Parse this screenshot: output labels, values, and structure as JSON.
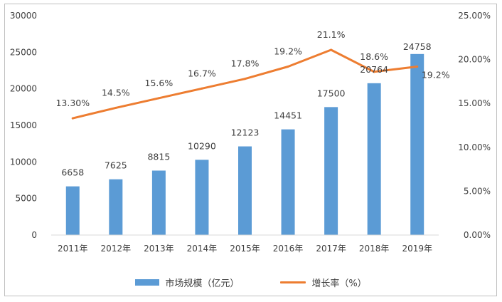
{
  "chart_data": {
    "type": "bar",
    "categories": [
      "2011年",
      "2012年",
      "2013年",
      "2014年",
      "2015年",
      "2016年",
      "2017年",
      "2018年",
      "2019年"
    ],
    "series": [
      {
        "name": "市场规模（亿元）",
        "kind": "bar",
        "axis": "left",
        "color": "#5b9bd5",
        "values": [
          6658,
          7625,
          8815,
          10290,
          12123,
          14451,
          17500,
          20764,
          24758
        ],
        "labels": [
          "6658",
          "7625",
          "8815",
          "10290",
          "12123",
          "14451",
          "17500",
          "20764",
          "24758"
        ]
      },
      {
        "name": "增长率（%）",
        "kind": "line",
        "axis": "right",
        "color": "#ed7d31",
        "values": [
          13.3,
          14.5,
          15.6,
          16.7,
          17.8,
          19.2,
          21.1,
          18.6,
          19.2
        ],
        "labels": [
          "13.30%",
          "14.5%",
          "15.6%",
          "16.7%",
          "17.8%",
          "19.2%",
          "21.1%",
          "18.6%",
          "19.2%"
        ]
      }
    ],
    "yLeft": {
      "min": 0,
      "max": 30000,
      "ticks": [
        "0",
        "5000",
        "10000",
        "15000",
        "20000",
        "25000",
        "30000"
      ]
    },
    "yRight": {
      "min": 0,
      "max": 25,
      "ticks": [
        "0.00%",
        "5.00%",
        "10.00%",
        "15.00%",
        "20.00%",
        "25.00%"
      ]
    },
    "grid": false,
    "legend_position": "bottom"
  }
}
